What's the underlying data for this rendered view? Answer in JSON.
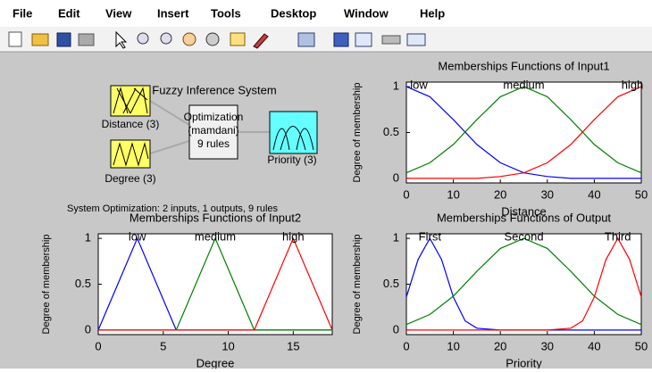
{
  "menu": {
    "items": [
      "File",
      "Edit",
      "View",
      "Insert",
      "Tools",
      "Desktop",
      "Window",
      "Help"
    ]
  },
  "fis": {
    "title": "Fuzzy Inference System",
    "inputs": [
      {
        "label": "Distance (3)"
      },
      {
        "label": "Degree (3)"
      }
    ],
    "system": {
      "lines": [
        "Optimization",
        "(mamdani)",
        "9 rules"
      ]
    },
    "output": {
      "label": "Priority (3)"
    },
    "summary": "System Optimization: 2 inputs, 1 outputs, 9 rules"
  },
  "charts": [
    {
      "type": "line",
      "title": "Memberships Functions of Input1",
      "xlabel": "Distance",
      "ylabel": "Degree of membership",
      "xlim": [
        0,
        50
      ],
      "ylim": [
        -0.05,
        1.05
      ],
      "xticks": [
        0,
        10,
        20,
        30,
        40,
        50
      ],
      "yticks": [
        0,
        0.5,
        1
      ],
      "series": [
        {
          "name": "low",
          "color": "#0000ff",
          "x": [
            0,
            5,
            10,
            15,
            20,
            25,
            30,
            35,
            40,
            45,
            50
          ],
          "values": [
            1,
            0.89,
            0.64,
            0.37,
            0.17,
            0.06,
            0.02,
            0,
            0,
            0,
            0
          ]
        },
        {
          "name": "medium",
          "color": "#008000",
          "x": [
            0,
            5,
            10,
            15,
            20,
            25,
            30,
            35,
            40,
            45,
            50
          ],
          "values": [
            0.06,
            0.17,
            0.37,
            0.64,
            0.89,
            1,
            0.89,
            0.64,
            0.37,
            0.17,
            0.06
          ]
        },
        {
          "name": "high",
          "color": "#ff0000",
          "x": [
            0,
            5,
            10,
            15,
            20,
            25,
            30,
            35,
            40,
            45,
            50
          ],
          "values": [
            0,
            0,
            0,
            0,
            0.02,
            0.06,
            0.17,
            0.37,
            0.64,
            0.89,
            1
          ]
        }
      ]
    },
    {
      "type": "line",
      "title": "Memberships Functions of Input2",
      "xlabel": "Degree",
      "ylabel": "Degree of membership",
      "xlim": [
        0,
        18
      ],
      "ylim": [
        -0.05,
        1.05
      ],
      "xticks": [
        0,
        5,
        10,
        15
      ],
      "yticks": [
        0,
        0.5,
        1
      ],
      "series": [
        {
          "name": "low",
          "color": "#0000ff",
          "x": [
            0,
            3,
            6,
            18
          ],
          "values": [
            0,
            1,
            0,
            0
          ]
        },
        {
          "name": "medium",
          "color": "#008000",
          "x": [
            0,
            6,
            9,
            12,
            18
          ],
          "values": [
            0,
            0,
            1,
            0,
            0
          ]
        },
        {
          "name": "high",
          "color": "#ff0000",
          "x": [
            0,
            12,
            15,
            18
          ],
          "values": [
            0,
            0,
            1,
            0
          ]
        }
      ]
    },
    {
      "type": "line",
      "title": "Memberships Functions of Output",
      "xlabel": "Priority",
      "ylabel": "Degree of membership",
      "xlim": [
        0,
        50
      ],
      "ylim": [
        -0.05,
        1.05
      ],
      "xticks": [
        0,
        10,
        20,
        30,
        40,
        50
      ],
      "yticks": [
        0,
        0.5,
        1
      ],
      "series": [
        {
          "name": "First",
          "color": "#0000ff",
          "x": [
            0,
            2.5,
            5,
            7.5,
            10,
            12.5,
            15,
            20,
            50
          ],
          "values": [
            0.36,
            0.77,
            1,
            0.77,
            0.36,
            0.1,
            0.02,
            0,
            0
          ]
        },
        {
          "name": "Second",
          "color": "#008000",
          "x": [
            0,
            5,
            10,
            15,
            20,
            25,
            30,
            35,
            40,
            45,
            50
          ],
          "values": [
            0.06,
            0.17,
            0.37,
            0.64,
            0.89,
            1,
            0.89,
            0.64,
            0.37,
            0.17,
            0.06
          ]
        },
        {
          "name": "Third",
          "color": "#ff0000",
          "x": [
            0,
            30,
            35,
            37.5,
            40,
            42.5,
            45,
            47.5,
            50
          ],
          "values": [
            0,
            0,
            0.02,
            0.1,
            0.36,
            0.77,
            1,
            0.77,
            0.36
          ]
        }
      ]
    }
  ]
}
